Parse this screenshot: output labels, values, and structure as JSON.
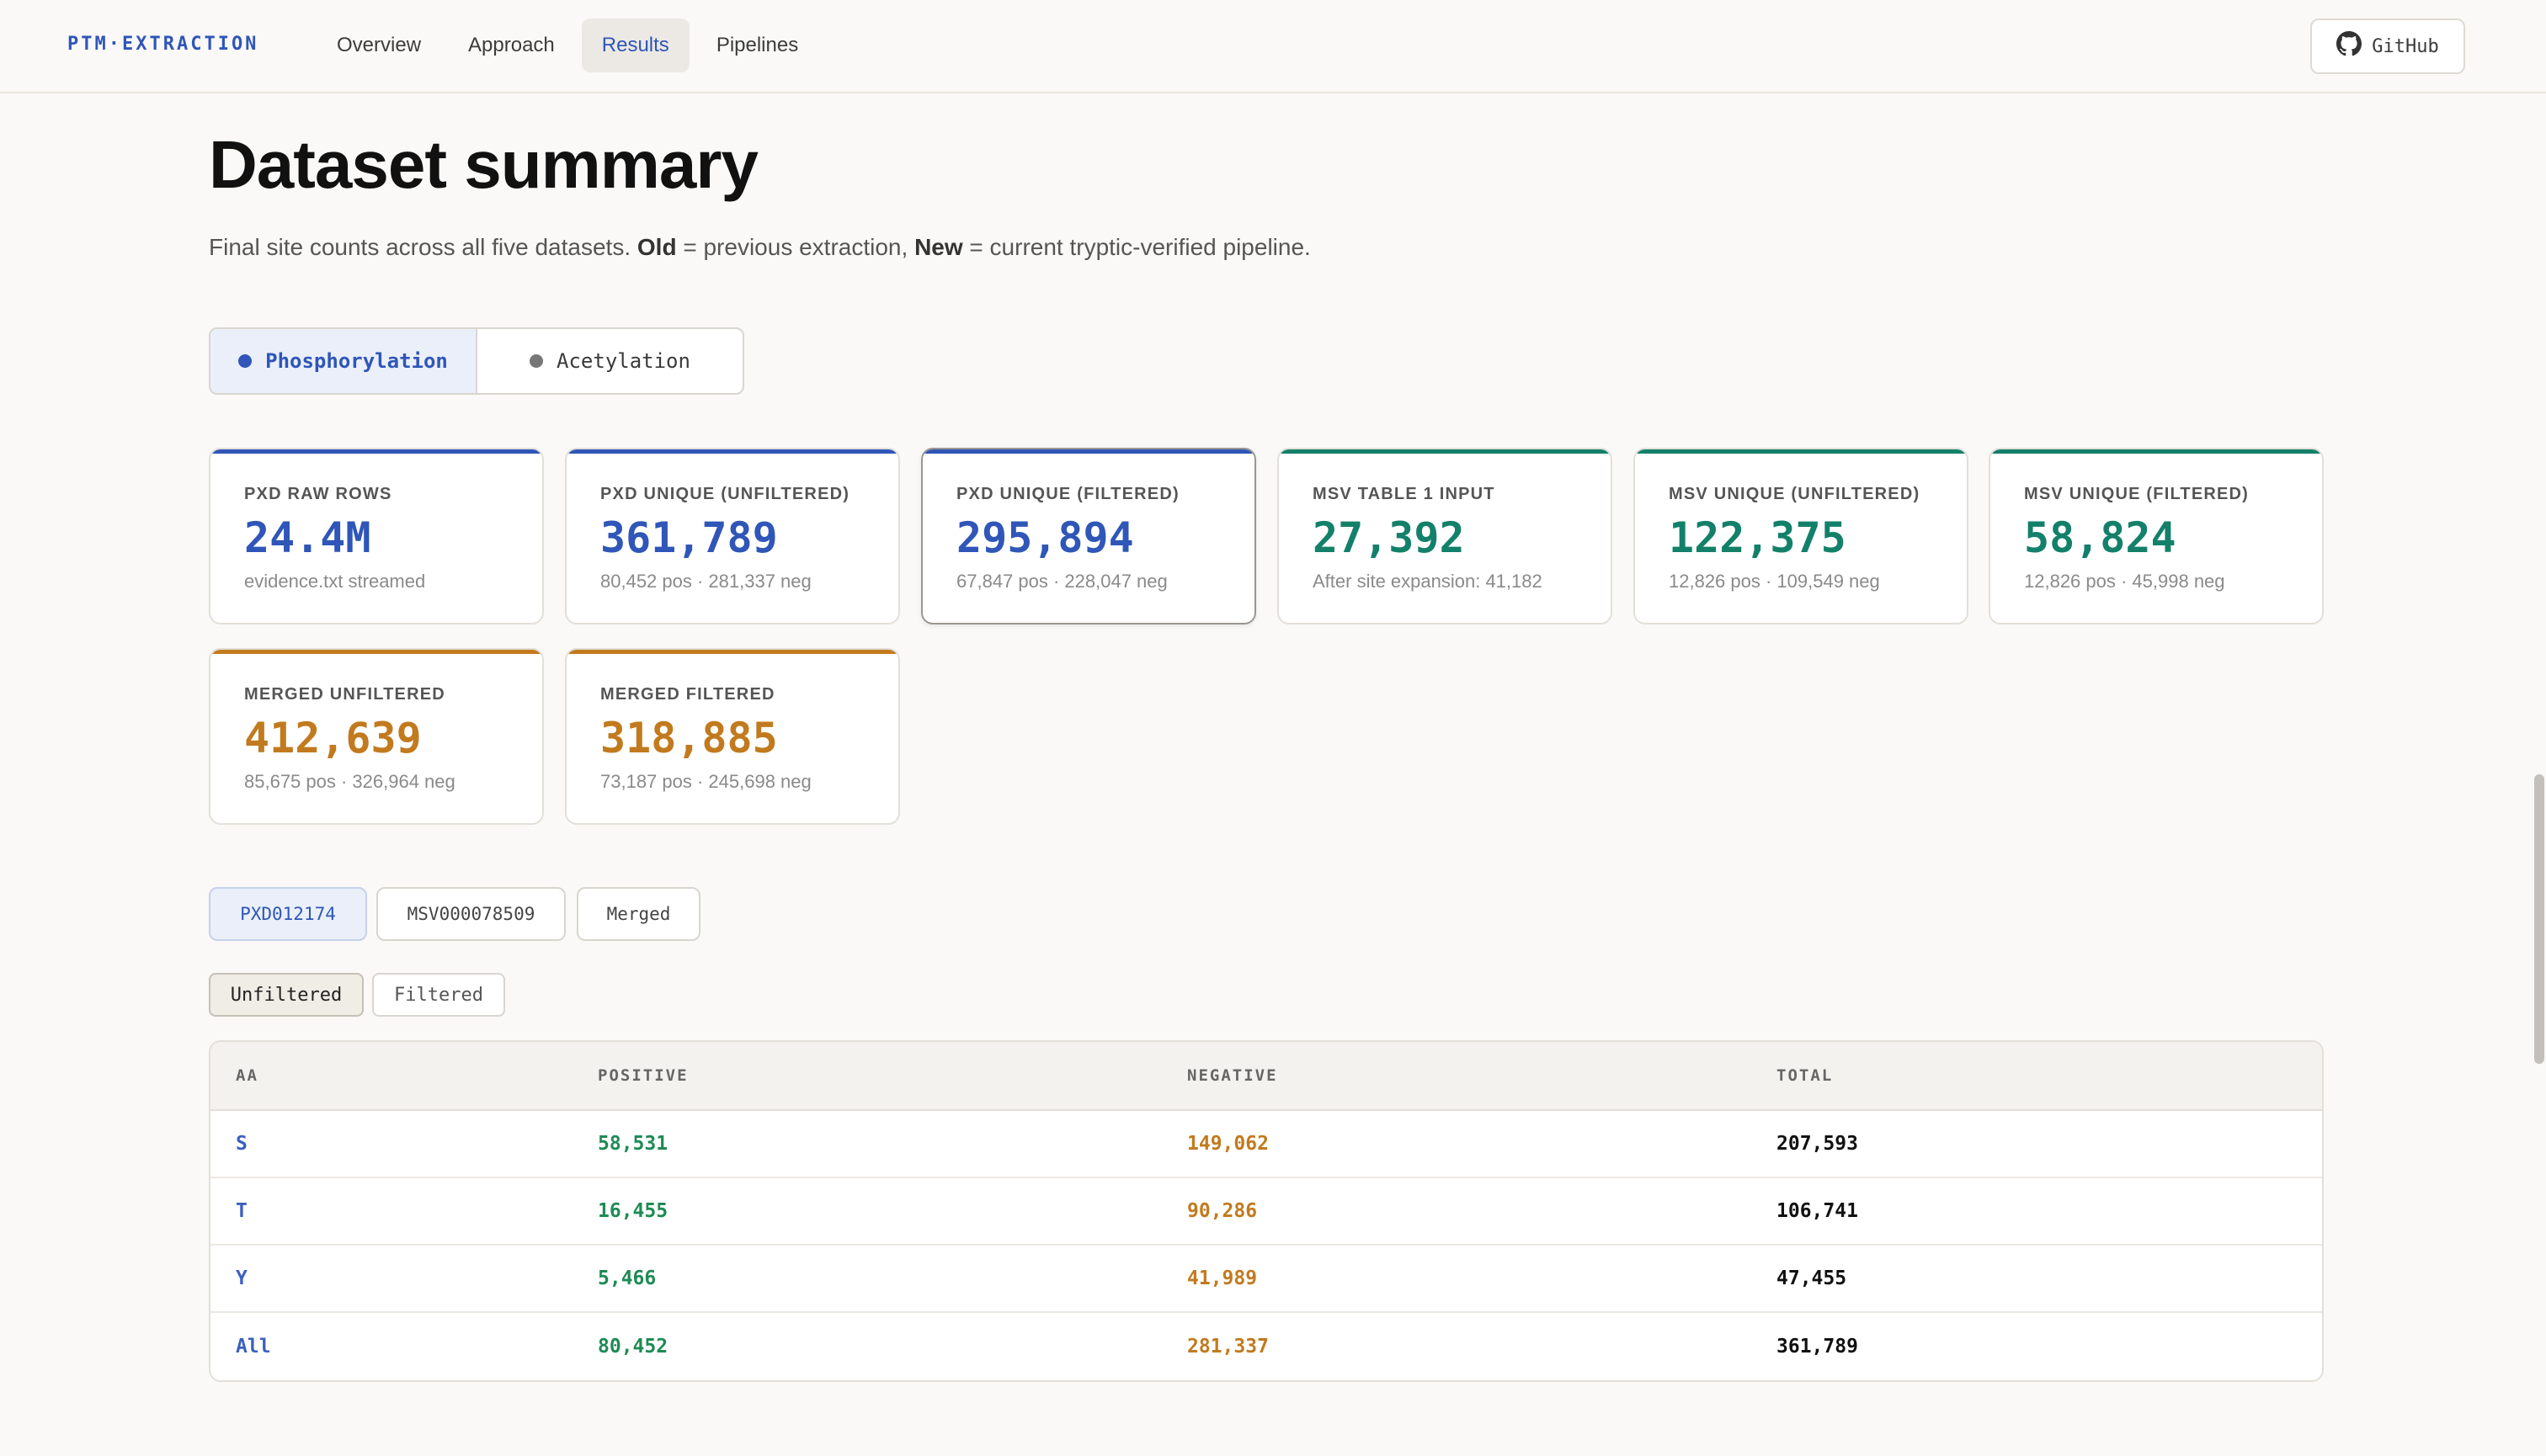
{
  "nav": {
    "brand": "PTM·EXTRACTION",
    "links": [
      "Overview",
      "Approach",
      "Results",
      "Pipelines"
    ],
    "active_link": "Results",
    "github_label": "GitHub"
  },
  "header": {
    "title": "Dataset summary",
    "subtitle_pre": "Final site counts across all five datasets. ",
    "subtitle_old": "Old",
    "subtitle_mid": " = previous extraction, ",
    "subtitle_new": "New",
    "subtitle_post": " = current tryptic-verified pipeline."
  },
  "ptm_toggle": {
    "options": [
      "Phosphorylation",
      "Acetylation"
    ],
    "selected": "Phosphorylation"
  },
  "colors": {
    "blue": "#2f56b8",
    "green": "#13806a",
    "orange": "#c27a1e"
  },
  "cards": [
    {
      "label": "PXD RAW ROWS",
      "value": "24.4M",
      "sub": "evidence.txt streamed",
      "accent": "blue"
    },
    {
      "label": "PXD UNIQUE (UNFILTERED)",
      "value": "361,789",
      "sub": "80,452 pos · 281,337 neg",
      "accent": "blue"
    },
    {
      "label": "PXD UNIQUE (FILTERED)",
      "value": "295,894",
      "sub": "67,847 pos · 228,047 neg",
      "accent": "blue"
    },
    {
      "label": "MSV TABLE 1 INPUT",
      "value": "27,392",
      "sub": "After site expansion: 41,182",
      "accent": "green"
    },
    {
      "label": "MSV UNIQUE (UNFILTERED)",
      "value": "122,375",
      "sub": "12,826 pos · 109,549 neg",
      "accent": "green"
    },
    {
      "label": "MSV UNIQUE (FILTERED)",
      "value": "58,824",
      "sub": "12,826 pos · 45,998 neg",
      "accent": "green"
    },
    {
      "label": "MERGED UNFILTERED",
      "value": "412,639",
      "sub": "85,675 pos · 326,964 neg",
      "accent": "orange"
    },
    {
      "label": "MERGED FILTERED",
      "value": "318,885",
      "sub": "73,187 pos · 245,698 neg",
      "accent": "orange"
    }
  ],
  "dataset_tabs": [
    "PXD012174",
    "MSV000078509",
    "Merged"
  ],
  "dataset_selected": "PXD012174",
  "filter_tabs": [
    "Unfiltered",
    "Filtered"
  ],
  "filter_selected": "Unfiltered",
  "table": {
    "headers": [
      "AA",
      "POSITIVE",
      "NEGATIVE",
      "TOTAL"
    ],
    "rows": [
      [
        "S",
        "58,531",
        "149,062",
        "207,593"
      ],
      [
        "T",
        "16,455",
        "90,286",
        "106,741"
      ],
      [
        "Y",
        "5,466",
        "41,989",
        "47,455"
      ],
      [
        "All",
        "80,452",
        "281,337",
        "361,789"
      ]
    ]
  }
}
